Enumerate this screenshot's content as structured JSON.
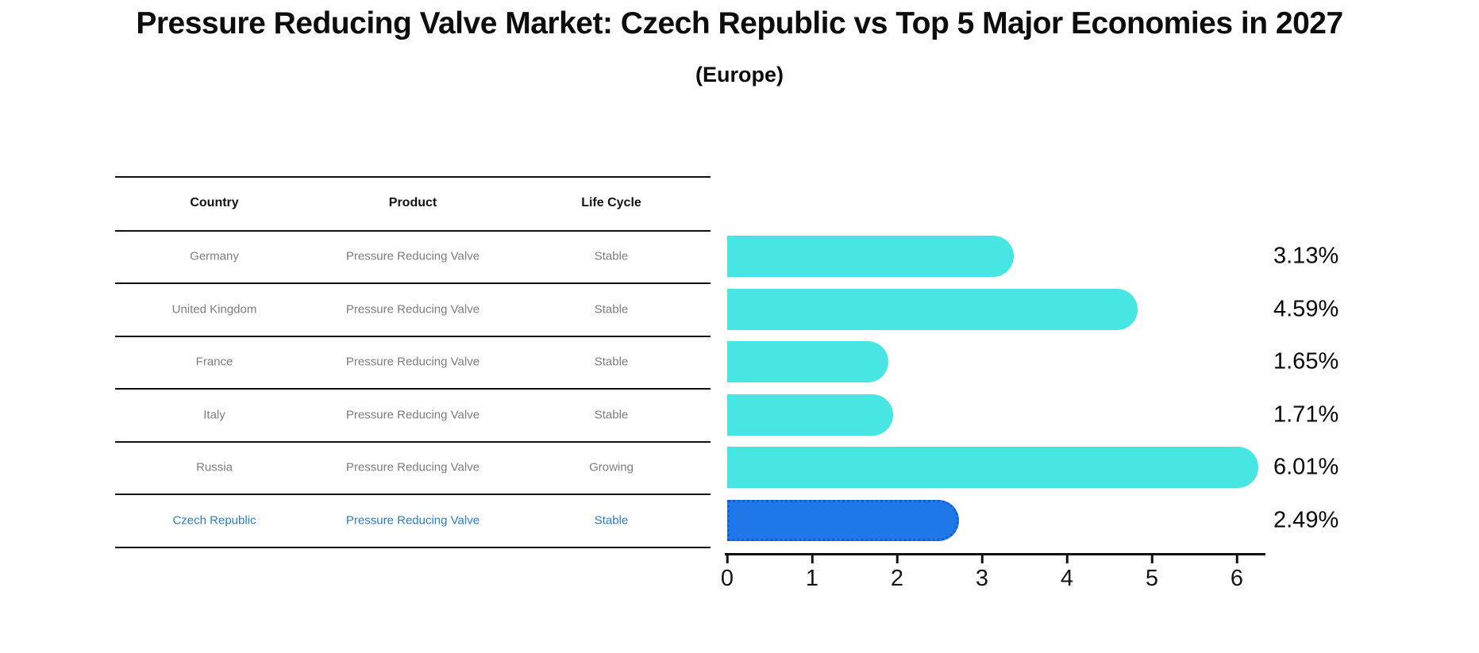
{
  "title": "Pressure Reducing Valve Market: Czech Republic vs Top 5 Major Economies in 2027",
  "subtitle": "(Europe)",
  "table": {
    "headers": [
      "Country",
      "Product",
      "Life Cycle"
    ],
    "rows": [
      {
        "country": "Germany",
        "product": "Pressure Reducing Valve",
        "life_cycle": "Stable",
        "highlight": false
      },
      {
        "country": "United Kingdom",
        "product": "Pressure Reducing Valve",
        "life_cycle": "Stable",
        "highlight": false
      },
      {
        "country": "France",
        "product": "Pressure Reducing Valve",
        "life_cycle": "Stable",
        "highlight": false
      },
      {
        "country": "Italy",
        "product": "Pressure Reducing Valve",
        "life_cycle": "Stable",
        "highlight": false
      },
      {
        "country": "Russia",
        "product": "Pressure Reducing Valve",
        "life_cycle": "Growing",
        "highlight": false
      },
      {
        "country": "Czech Republic",
        "product": "Pressure Reducing Valve",
        "life_cycle": "Stable",
        "highlight": true
      }
    ]
  },
  "chart_data": {
    "type": "bar",
    "orientation": "horizontal",
    "title": "Pressure Reducing Valve Market: Czech Republic vs Top 5 Major Economies in 2027",
    "subtitle": "(Europe)",
    "categories": [
      "Germany",
      "United Kingdom",
      "France",
      "Italy",
      "Russia",
      "Czech Republic"
    ],
    "values": [
      3.13,
      4.59,
      1.65,
      1.71,
      6.01,
      2.49
    ],
    "value_labels": [
      "3.13%",
      "4.59%",
      "1.65%",
      "1.71%",
      "6.01%",
      "2.49%"
    ],
    "x_ticks": [
      0,
      1,
      2,
      3,
      4,
      5,
      6
    ],
    "xlim": [
      0,
      6.33
    ],
    "xlabel": "",
    "ylabel": "",
    "grid": false,
    "legend": "none",
    "bar_color": "#47e6e2",
    "highlight_color": "#2078e8",
    "highlight_border_color": "#1a5fd0",
    "highlight_index": 5,
    "highlight_text_color": "#2b7bce"
  }
}
